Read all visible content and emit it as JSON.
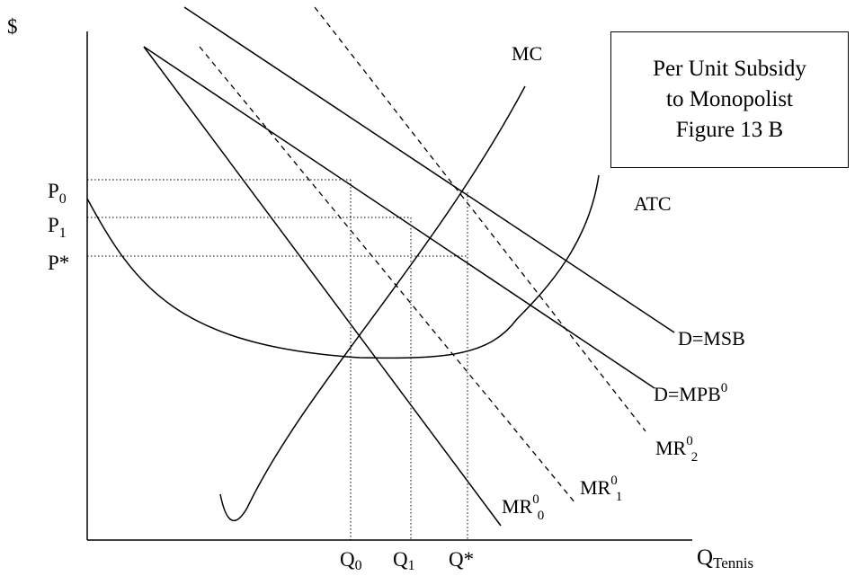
{
  "title_box": {
    "line1": "Per Unit Subsidy",
    "line2": "to Monopolist",
    "line3": "Figure 13 B"
  },
  "axes": {
    "y_label": "$",
    "x_label_main": "Q",
    "x_label_sub": "Tennis"
  },
  "price_labels": [
    {
      "main": "P",
      "sub": "0"
    },
    {
      "main": "P",
      "sub": "1"
    },
    {
      "main": "P*",
      "sub": ""
    }
  ],
  "quantity_labels": [
    {
      "main": "Q",
      "sub": "0"
    },
    {
      "main": "Q",
      "sub": "1"
    },
    {
      "main": "Q*",
      "sub": ""
    }
  ],
  "curve_labels": {
    "mc": "MC",
    "atc": "ATC",
    "d_msb": "D=MSB",
    "d_mpb": {
      "main": "D=MPB",
      "sup": "0"
    },
    "mr02": {
      "main": "MR",
      "sup": "0",
      "sub": "2"
    },
    "mr01": {
      "main": "MR",
      "sup": "0",
      "sub": "1"
    },
    "mr00": {
      "main": "MR",
      "sup": "0",
      "sub": "0"
    }
  },
  "colors": {
    "line": "#000000",
    "background": "#ffffff"
  }
}
